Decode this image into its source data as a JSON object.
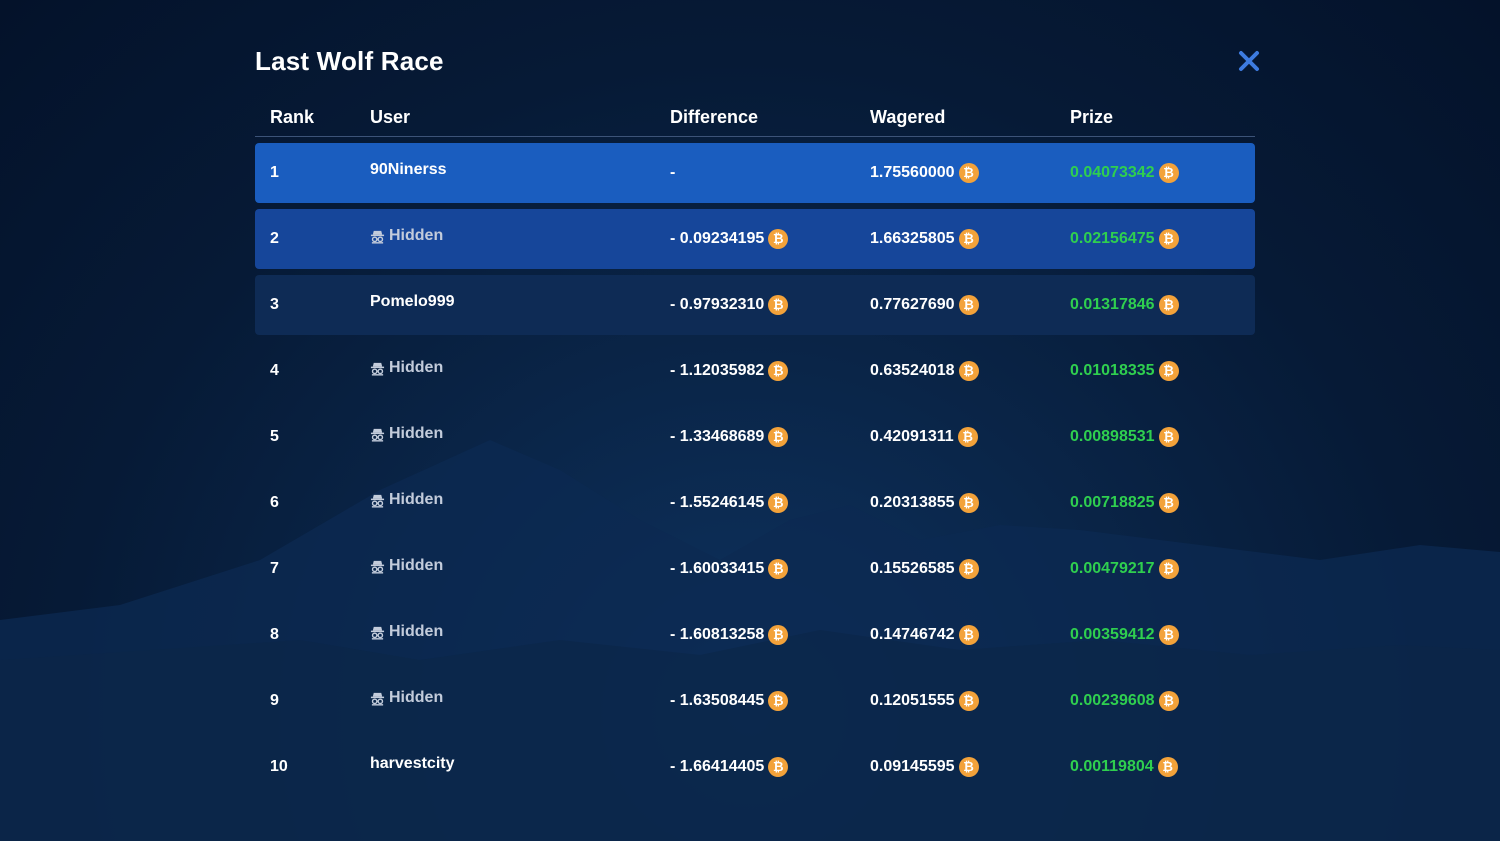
{
  "modal": {
    "title": "Last Wolf Race",
    "close_icon": "close-icon"
  },
  "table": {
    "headers": {
      "rank": "Rank",
      "user": "User",
      "difference": "Difference",
      "wagered": "Wagered",
      "prize": "Prize"
    },
    "rows": [
      {
        "rank": "1",
        "user": "90Ninerss",
        "hidden": false,
        "difference": "-",
        "wagered": "1.75560000",
        "prize": "0.04073342"
      },
      {
        "rank": "2",
        "user": "Hidden",
        "hidden": true,
        "difference": "- 0.09234195",
        "wagered": "1.66325805",
        "prize": "0.02156475"
      },
      {
        "rank": "3",
        "user": "Pomelo999",
        "hidden": false,
        "difference": "- 0.97932310",
        "wagered": "0.77627690",
        "prize": "0.01317846"
      },
      {
        "rank": "4",
        "user": "Hidden",
        "hidden": true,
        "difference": "- 1.12035982",
        "wagered": "0.63524018",
        "prize": "0.01018335"
      },
      {
        "rank": "5",
        "user": "Hidden",
        "hidden": true,
        "difference": "- 1.33468689",
        "wagered": "0.42091311",
        "prize": "0.00898531"
      },
      {
        "rank": "6",
        "user": "Hidden",
        "hidden": true,
        "difference": "- 1.55246145",
        "wagered": "0.20313855",
        "prize": "0.00718825"
      },
      {
        "rank": "7",
        "user": "Hidden",
        "hidden": true,
        "difference": "- 1.60033415",
        "wagered": "0.15526585",
        "prize": "0.00479217"
      },
      {
        "rank": "8",
        "user": "Hidden",
        "hidden": true,
        "difference": "- 1.60813258",
        "wagered": "0.14746742",
        "prize": "0.00359412"
      },
      {
        "rank": "9",
        "user": "Hidden",
        "hidden": true,
        "difference": "- 1.63508445",
        "wagered": "0.12051555",
        "prize": "0.00239608"
      },
      {
        "rank": "10",
        "user": "harvestcity",
        "hidden": false,
        "difference": "- 1.66414405",
        "wagered": "0.09145595",
        "prize": "0.00119804"
      }
    ]
  },
  "icons": {
    "currency": "bitcoin-icon",
    "hidden_user": "incognito-icon"
  },
  "colors": {
    "row_first": "#1a5dbf",
    "row_second": "#16469a",
    "row_third": "#0e2b55",
    "prize_green": "#2fcf4f",
    "bitcoin_orange": "#f3a23a",
    "close_blue": "#3d7be0"
  }
}
